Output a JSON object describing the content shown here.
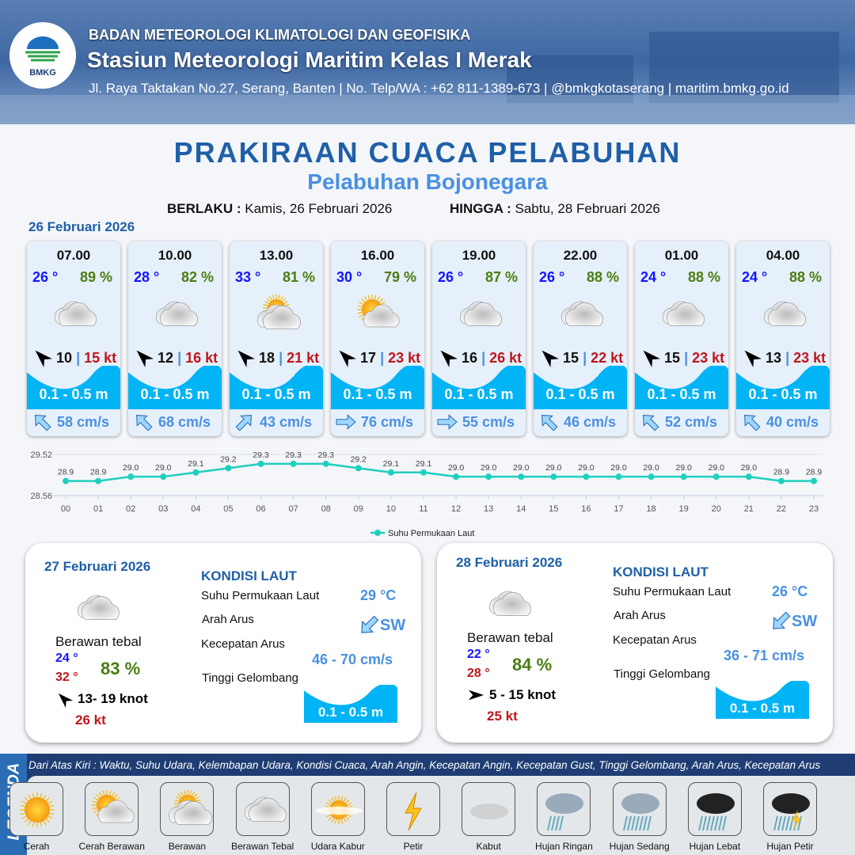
{
  "header": {
    "agency": "BADAN METEOROLOGI KLIMATOLOGI DAN GEOFISIKA",
    "station": "Stasiun Meteorologi Maritim Kelas I Merak",
    "contact": "Jl. Raya Taktakan No.27, Serang, Banten | No. Telp/WA : +62 811-1389-673 | @bmkgkotaserang | maritim.bmkg.go.id",
    "logo_text": "BMKG"
  },
  "title": "PRAKIRAAN CUACA PELABUHAN",
  "subtitle": "Pelabuhan Bojonegara",
  "validity": {
    "from_label": "BERLAKU :",
    "from": "Kamis, 26 Februari 2026",
    "to_label": "HINGGA :",
    "to": "Sabtu, 28 Februari 2026"
  },
  "day1": {
    "date": "26 Februari 2026",
    "forecasts": [
      {
        "time": "07.00",
        "temp": "26 °",
        "rh": "89 %",
        "weather": "berawan-tebal",
        "wind": "10",
        "sep": "|",
        "gust": "15 kt",
        "wave": "0.1 - 0.5 m",
        "current_dir": "nw",
        "current": "58 cm/s"
      },
      {
        "time": "10.00",
        "temp": "28 °",
        "rh": "82 %",
        "weather": "berawan-tebal",
        "wind": "12",
        "sep": "|",
        "gust": "16 kt",
        "wave": "0.1 - 0.5 m",
        "current_dir": "nw",
        "current": "68 cm/s"
      },
      {
        "time": "13.00",
        "temp": "33 °",
        "rh": "81 %",
        "weather": "berawan",
        "wind": "18",
        "sep": "|",
        "gust": "21 kt",
        "wave": "0.1 - 0.5 m",
        "current_dir": "ne",
        "current": "43 cm/s"
      },
      {
        "time": "16.00",
        "temp": "30 °",
        "rh": "79 %",
        "weather": "cerah-berawan",
        "wind": "17",
        "sep": "|",
        "gust": "23 kt",
        "wave": "0.1 - 0.5 m",
        "current_dir": "e",
        "current": "76 cm/s"
      },
      {
        "time": "19.00",
        "temp": "26 °",
        "rh": "87 %",
        "weather": "berawan-tebal",
        "wind": "16",
        "sep": "|",
        "gust": "26 kt",
        "wave": "0.1 - 0.5 m",
        "current_dir": "e",
        "current": "55 cm/s"
      },
      {
        "time": "22.00",
        "temp": "26 °",
        "rh": "88 %",
        "weather": "berawan-tebal",
        "wind": "15",
        "sep": "|",
        "gust": "22 kt",
        "wave": "0.1 - 0.5 m",
        "current_dir": "nw",
        "current": "46 cm/s"
      },
      {
        "time": "01.00",
        "temp": "24 °",
        "rh": "88 %",
        "weather": "berawan-tebal",
        "wind": "15",
        "sep": "|",
        "gust": "23 kt",
        "wave": "0.1 - 0.5 m",
        "current_dir": "nw",
        "current": "52 cm/s"
      },
      {
        "time": "04.00",
        "temp": "24 °",
        "rh": "88 %",
        "weather": "berawan-tebal",
        "wind": "13",
        "sep": "|",
        "gust": "23 kt",
        "wave": "0.1 - 0.5 m",
        "current_dir": "nw",
        "current": "40 cm/s"
      }
    ]
  },
  "chart_data": {
    "type": "line",
    "categories": [
      "00",
      "01",
      "02",
      "03",
      "04",
      "05",
      "06",
      "07",
      "08",
      "09",
      "10",
      "11",
      "12",
      "13",
      "14",
      "15",
      "16",
      "17",
      "18",
      "19",
      "20",
      "21",
      "22",
      "23"
    ],
    "series": [
      {
        "name": "Suhu Permukaan Laut",
        "values": [
          28.9,
          28.9,
          29.0,
          29.0,
          29.1,
          29.2,
          29.3,
          29.3,
          29.3,
          29.2,
          29.1,
          29.1,
          29.0,
          29.0,
          29.0,
          29.0,
          29.0,
          29.0,
          29.0,
          29.0,
          29.0,
          29.0,
          28.9,
          28.9
        ],
        "color": "#1fcfbf"
      }
    ],
    "yticks": [
      "29.52",
      "28.56"
    ],
    "ylim": [
      28.56,
      29.52
    ],
    "legend": "bottom",
    "grid": true
  },
  "days": [
    {
      "date": "27 Februari 2026",
      "weather": "Berawan tebal",
      "tmin": "24 °",
      "tmax": "32 °",
      "rh": "83 %",
      "wind": "13- 19 knot",
      "wind_dir": "nw",
      "gust": "26 kt",
      "sea_title": "KONDISI LAUT",
      "sst_label": "Suhu Permukaan Laut",
      "sst": "29 °C",
      "dir_label": "Arah Arus",
      "dir": "SW",
      "speed_label": "Kecepatan Arus",
      "speed": "46 - 70 cm/s",
      "wave_label": "Tinggi Gelombang",
      "wave": "0.1 - 0.5 m"
    },
    {
      "date": "28 Februari 2026",
      "weather": "Berawan tebal",
      "tmin": "22 °",
      "tmax": "28 °",
      "rh": "84 %",
      "wind": "5 - 15 knot",
      "wind_dir": "e",
      "gust": "25 kt",
      "sea_title": "KONDISI LAUT",
      "sst_label": "Suhu Permukaan Laut",
      "sst": "26 °C",
      "dir_label": "Arah Arus",
      "dir": "SW",
      "speed_label": "Kecepatan Arus",
      "speed": "36 - 71 cm/s",
      "wave_label": "Tinggi Gelombang",
      "wave": "0.1 - 0.5 m"
    }
  ],
  "legend": {
    "title": "LEGENDA",
    "note": "Dari Atas Kiri : Waktu, Suhu Udara, Kelembapan Udara, Kondisi Cuaca, Arah Angin, Kecepatan Angin, Kecepatan Gust, Tinggi Gelombang, Arah Arus, Kecepatan Arus",
    "items": [
      {
        "label": "Cerah",
        "icon": "cerah"
      },
      {
        "label": "Cerah Berawan",
        "icon": "cerah-berawan"
      },
      {
        "label": "Berawan",
        "icon": "berawan"
      },
      {
        "label": "Berawan Tebal",
        "icon": "berawan-tebal"
      },
      {
        "label": "Udara Kabur",
        "icon": "udara-kabur"
      },
      {
        "label": "Petir",
        "icon": "petir"
      },
      {
        "label": "Kabut",
        "icon": "kabut"
      },
      {
        "label": "Hujan Ringan",
        "icon": "hujan-ringan"
      },
      {
        "label": "Hujan Sedang",
        "icon": "hujan-sedang"
      },
      {
        "label": "Hujan Lebat",
        "icon": "hujan-lebat"
      },
      {
        "label": "Hujan Petir",
        "icon": "hujan-petir"
      }
    ]
  },
  "colors": {
    "brand": "#1f5fa8",
    "wave": "#00b4f5",
    "temp": "#1414ff",
    "rh": "#4a7d10",
    "gust": "#c0161b",
    "current": "#4a90e2"
  }
}
